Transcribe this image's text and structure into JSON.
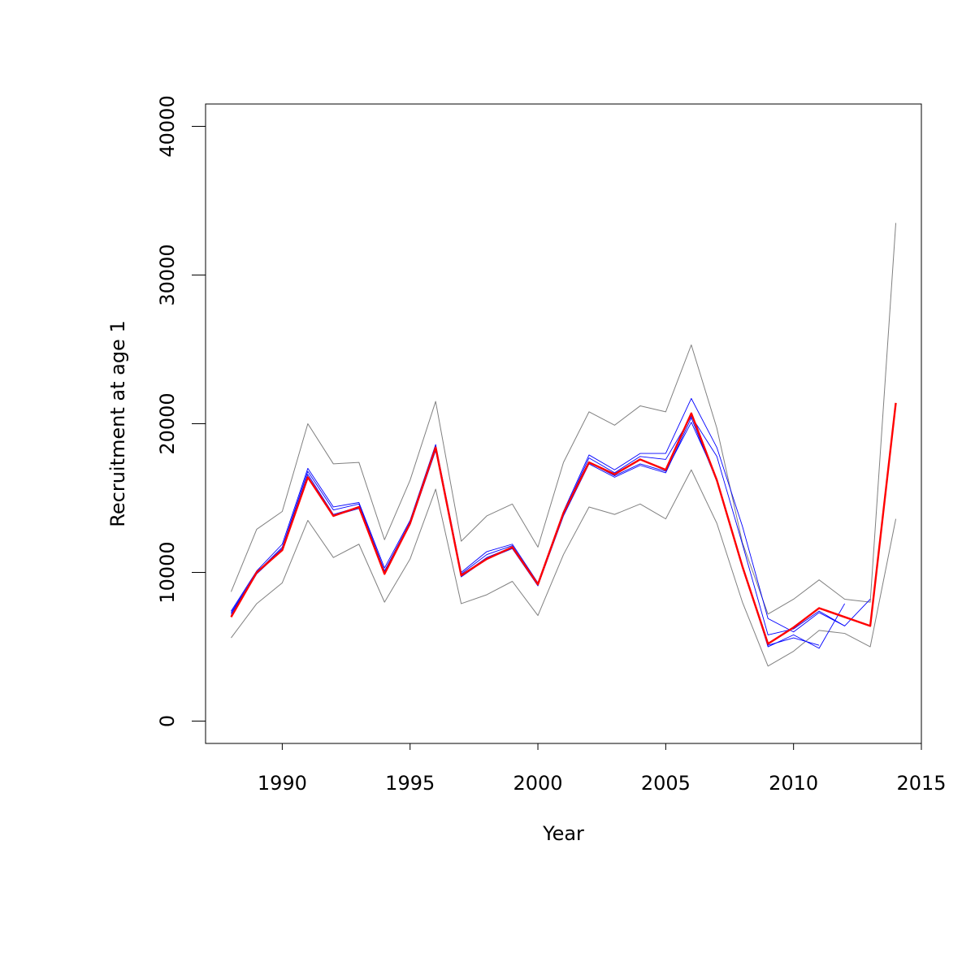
{
  "chart_data": {
    "type": "line",
    "title": "",
    "xlabel": "Year",
    "ylabel": "Recruitment at age 1",
    "xlim": [
      1987,
      2015
    ],
    "ylim": [
      -1500,
      41500
    ],
    "x_ticks": [
      1990,
      1995,
      2000,
      2005,
      2010,
      2015
    ],
    "y_ticks": [
      0,
      10000,
      20000,
      30000,
      40000
    ],
    "x_tick_labels": [
      "1990",
      "1995",
      "2000",
      "2005",
      "2010",
      "2015"
    ],
    "y_tick_labels": [
      "0",
      "10000",
      "20000",
      "30000",
      "40000"
    ],
    "grid": false,
    "legend": "none",
    "series": [
      {
        "role": "upper-bound",
        "color": "#808080",
        "x": [
          1988,
          1989,
          1990,
          1991,
          1992,
          1993,
          1994,
          1995,
          1996,
          1997,
          1998,
          1999,
          2000,
          2001,
          2002,
          2003,
          2004,
          2005,
          2006,
          2007,
          2008,
          2009,
          2010,
          2011,
          2012,
          2013,
          2014
        ],
        "y": [
          8700,
          12900,
          14100,
          20000,
          17300,
          17400,
          12200,
          16200,
          21500,
          12100,
          13800,
          14600,
          11700,
          17400,
          20800,
          19900,
          21200,
          20800,
          25300,
          19700,
          12000,
          7200,
          8200,
          9500,
          8200,
          8000,
          33500
        ]
      },
      {
        "role": "lower-bound",
        "color": "#808080",
        "x": [
          1988,
          1989,
          1990,
          1991,
          1992,
          1993,
          1994,
          1995,
          1996,
          1997,
          1998,
          1999,
          2000,
          2001,
          2002,
          2003,
          2004,
          2005,
          2006,
          2007,
          2008,
          2009,
          2010,
          2011,
          2012,
          2013,
          2014
        ],
        "y": [
          5600,
          7900,
          9300,
          13500,
          11000,
          11900,
          8000,
          10900,
          15600,
          7900,
          8500,
          9400,
          7100,
          11200,
          14400,
          13900,
          14600,
          13600,
          16900,
          13300,
          8000,
          3700,
          4700,
          6100,
          5900,
          5000,
          13600
        ]
      },
      {
        "role": "retrospective",
        "color": "#0000ff",
        "x": [
          1988,
          1989,
          1990,
          1991,
          1992,
          1993,
          1994,
          1995,
          1996,
          1997,
          1998,
          1999,
          2000,
          2001,
          2002,
          2003,
          2004,
          2005,
          2006,
          2007,
          2008,
          2009,
          2010,
          2011,
          2012
        ],
        "y": [
          7400,
          10100,
          11900,
          17000,
          14400,
          14700,
          10300,
          13500,
          18600,
          10000,
          11400,
          11900,
          9300,
          14100,
          17900,
          16900,
          18000,
          18000,
          21700,
          18400,
          13100,
          6900,
          6000,
          7300,
          6400
        ]
      },
      {
        "role": "retrospective",
        "color": "#0000ff",
        "x": [
          1988,
          1989,
          1990,
          1991,
          1992,
          1993,
          1994,
          1995,
          1996,
          1997,
          1998,
          1999,
          2000,
          2001,
          2002,
          2003,
          2004,
          2005,
          2006,
          2007,
          2008,
          2009,
          2010,
          2011,
          2012,
          2013
        ],
        "y": [
          7300,
          10000,
          11700,
          16800,
          14200,
          14600,
          10100,
          13400,
          18500,
          9900,
          11200,
          11800,
          9200,
          14000,
          17700,
          16700,
          17800,
          17600,
          20500,
          17800,
          11900,
          5800,
          6200,
          7400,
          6400,
          8200
        ]
      },
      {
        "role": "retrospective",
        "color": "#0000ff",
        "x": [
          1988,
          1989,
          1990,
          1991,
          1992,
          1993,
          1994,
          1995,
          1996,
          1997,
          1998,
          1999,
          2000,
          2001,
          2002,
          2003,
          2004,
          2005,
          2006,
          2007,
          2008,
          2009,
          2010,
          2011,
          2012
        ],
        "y": [
          7200,
          10000,
          11600,
          16600,
          13900,
          14400,
          10000,
          13300,
          18300,
          9800,
          11000,
          11700,
          9100,
          13900,
          17400,
          16500,
          17300,
          16800,
          20100,
          16300,
          10500,
          5000,
          5800,
          4900,
          7900
        ]
      },
      {
        "role": "retrospective",
        "color": "#0000ff",
        "x": [
          1988,
          1989,
          1990,
          1991,
          1992,
          1993,
          1994,
          1995,
          1996,
          1997,
          1998,
          1999,
          2000,
          2001,
          2002,
          2003,
          2004,
          2005,
          2006,
          2007,
          2008,
          2009,
          2010,
          2011
        ],
        "y": [
          7100,
          9900,
          11500,
          16400,
          13800,
          14300,
          9900,
          13200,
          18200,
          9700,
          10900,
          11600,
          9100,
          13800,
          17300,
          16400,
          17200,
          16700,
          20400,
          16100,
          10300,
          5100,
          5600,
          5100
        ]
      },
      {
        "role": "estimate",
        "color": "#ff0000",
        "x": [
          1988,
          1989,
          1990,
          1991,
          1992,
          1993,
          1994,
          1995,
          1996,
          1997,
          1998,
          1999,
          2000,
          2001,
          2002,
          2003,
          2004,
          2005,
          2006,
          2007,
          2008,
          2009,
          2010,
          2011,
          2012,
          2013,
          2014
        ],
        "y": [
          7000,
          10000,
          11500,
          16400,
          13800,
          14400,
          9900,
          13300,
          18400,
          9800,
          10900,
          11700,
          9200,
          14000,
          17400,
          16600,
          17600,
          16900,
          20700,
          16200,
          10400,
          5200,
          6300,
          7600,
          7000,
          6400,
          21400
        ]
      }
    ]
  }
}
